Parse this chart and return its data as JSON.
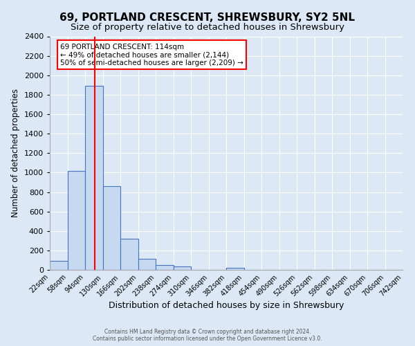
{
  "title": "69, PORTLAND CRESCENT, SHREWSBURY, SY2 5NL",
  "subtitle": "Size of property relative to detached houses in Shrewsbury",
  "xlabel": "Distribution of detached houses by size in Shrewsbury",
  "ylabel": "Number of detached properties",
  "bin_edges": [
    22,
    58,
    94,
    130,
    166,
    202,
    238,
    274,
    310,
    346,
    382,
    418,
    454,
    490,
    526,
    562,
    598,
    634,
    670,
    706,
    742
  ],
  "bar_heights": [
    90,
    1020,
    1890,
    860,
    320,
    115,
    50,
    35,
    0,
    0,
    20,
    0,
    0,
    0,
    0,
    0,
    0,
    0,
    0,
    0
  ],
  "bar_color": "#c6d9f0",
  "bar_edge_color": "#4472c4",
  "red_line_x": 114,
  "annotation_line1": "69 PORTLAND CRESCENT: 114sqm",
  "annotation_line2": "← 49% of detached houses are smaller (2,144)",
  "annotation_line3": "50% of semi-detached houses are larger (2,209) →",
  "ylim": [
    0,
    2400
  ],
  "yticks": [
    0,
    200,
    400,
    600,
    800,
    1000,
    1200,
    1400,
    1600,
    1800,
    2000,
    2200,
    2400
  ],
  "background_color": "#dce8f5",
  "grid_color": "#ffffff",
  "footer_line1": "Contains HM Land Registry data © Crown copyright and database right 2024.",
  "footer_line2": "Contains public sector information licensed under the Open Government Licence v3.0."
}
